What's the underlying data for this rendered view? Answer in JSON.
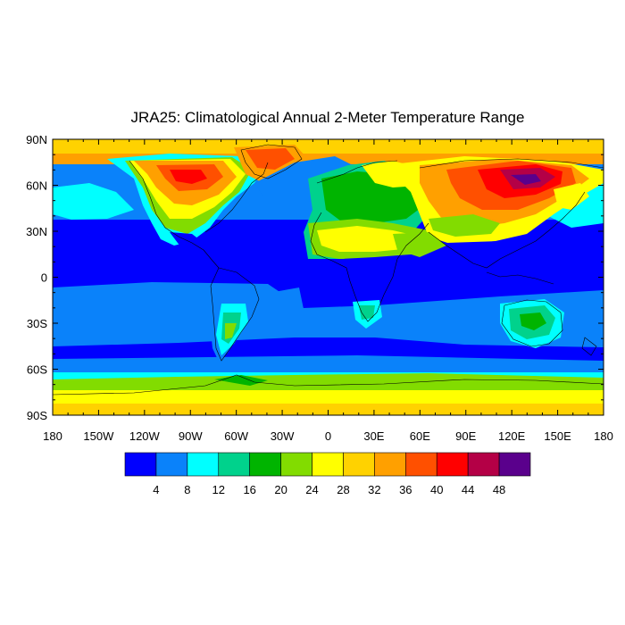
{
  "chart_data": {
    "type": "heatmap",
    "title": "JRA25: Climatological Annual 2-Meter Temperature Range",
    "projection": "cylindrical-equidistant",
    "lon_range": [
      -180,
      180
    ],
    "lat_range": [
      -90,
      90
    ],
    "lat_ticks": [
      "90N",
      "60N",
      "30N",
      "0",
      "30S",
      "60S",
      "90S"
    ],
    "lon_ticks": [
      "180",
      "150W",
      "120W",
      "90W",
      "60W",
      "30W",
      "0",
      "30E",
      "60E",
      "90E",
      "120E",
      "150E",
      "180"
    ],
    "colorbar": {
      "labels": [
        "4",
        "8",
        "12",
        "16",
        "20",
        "24",
        "28",
        "32",
        "36",
        "40",
        "44",
        "48"
      ],
      "colors": [
        "#0000ff",
        "#0a82fa",
        "#00ffff",
        "#00d28c",
        "#00b400",
        "#82dc00",
        "#ffff00",
        "#ffd200",
        "#ffa000",
        "#ff5000",
        "#ff0000",
        "#b40046",
        "#5a008c"
      ]
    },
    "grid": false,
    "coastlines": true
  }
}
